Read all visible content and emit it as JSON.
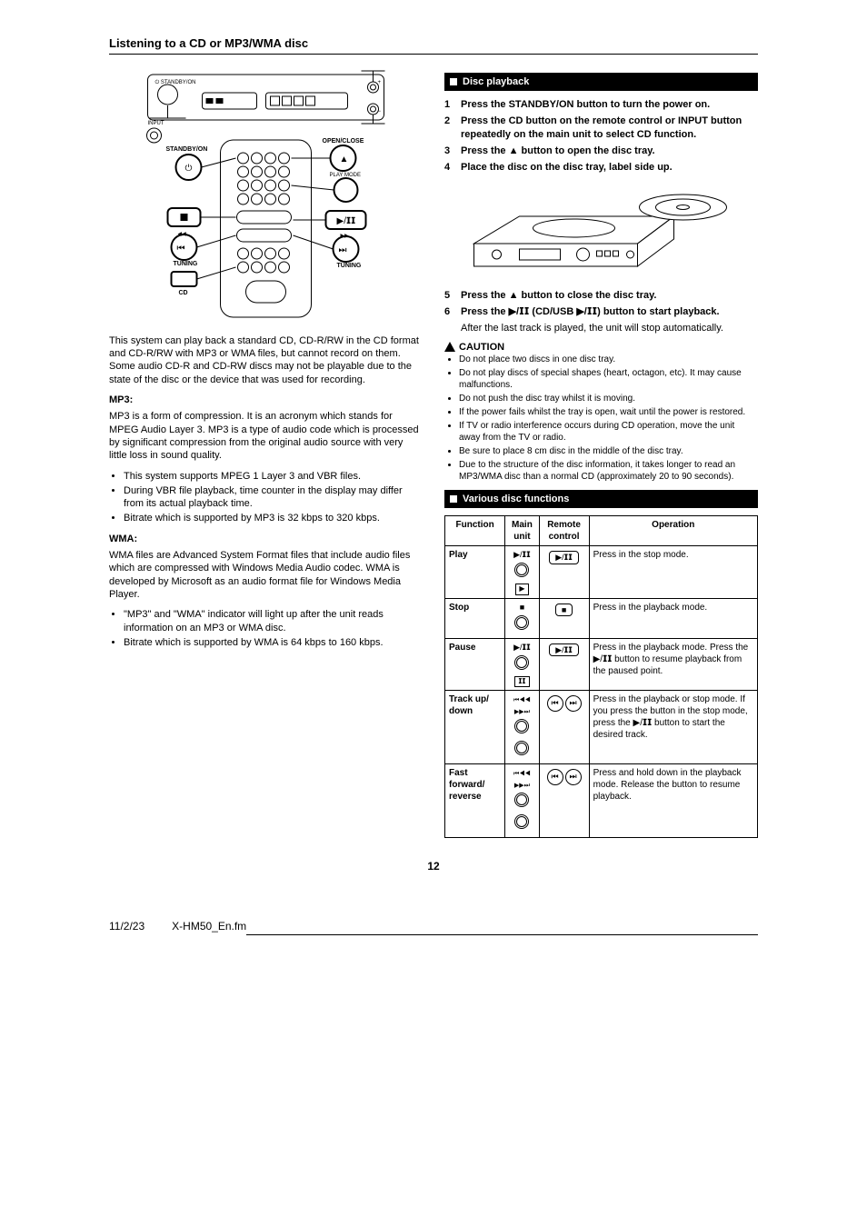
{
  "page": {
    "title": "Listening to a CD or MP3/WMA disc",
    "number": "12",
    "footer_date": "11/2/23",
    "footer_doc": "X-HM50_En.fm"
  },
  "left": {
    "diagram_labels": {
      "standby_on": "STANDBY/ON",
      "input": "INPUT",
      "open_close": "OPEN/CLOSE",
      "play_mode": "PLAY MODE",
      "tuning": "TUNING",
      "cd": "CD"
    },
    "intro": "This system can play back a standard CD, CD-R/RW in the CD format and CD-R/RW with MP3 or WMA files, but cannot record on them. Some audio CD-R and CD-RW discs may not be playable due to the state of the disc or the device that was used for recording.",
    "mp3_head": "MP3:",
    "mp3_body": "MP3 is a form of compression. It is an acronym which stands for MPEG Audio Layer 3. MP3 is a type of audio code which is processed by significant compression from the original audio source with very little loss in sound quality.",
    "mp3_bullets": [
      "This system supports MPEG 1 Layer 3 and VBR files.",
      "During VBR file playback, time counter in the display may differ from its actual playback time.",
      "Bitrate which is supported by MP3 is 32 kbps to 320 kbps."
    ],
    "wma_head": "WMA:",
    "wma_body": "WMA files are Advanced System Format files that include audio files which are compressed with Windows Media Audio codec. WMA is developed by Microsoft as an audio format file for Windows Media Player.",
    "wma_bullets": [
      "\"MP3\" and \"WMA\" indicator will light up after the unit reads information on an MP3 or WMA disc.",
      "Bitrate which is supported by WMA is 64 kbps to 160 kbps."
    ]
  },
  "right": {
    "section1_title": "Disc playback",
    "steps": [
      {
        "n": "1",
        "t": "Press the STANDBY/ON button to turn the power on."
      },
      {
        "n": "2",
        "t": "Press the CD button on the remote control or INPUT button repeatedly on the main unit to select CD function."
      },
      {
        "n": "3",
        "t": "Press the ▲ button to open the disc tray."
      },
      {
        "n": "4",
        "t": "Place the disc on the disc tray, label side up."
      }
    ],
    "step5": {
      "n": "5",
      "t": "Press the ▲ button to close the disc tray."
    },
    "step6": {
      "n": "6",
      "t": "Press the ▶/𝗜𝗜 (CD/USB ▶/𝗜𝗜) button to start playback."
    },
    "after6": "After the last track is played, the unit will stop automatically.",
    "caution_head": "CAUTION",
    "cautions": [
      "Do not place two discs in one disc tray.",
      "Do not play discs of special shapes (heart, octagon, etc). It may cause malfunctions.",
      "Do not push the disc tray whilst it is moving.",
      "If the power fails whilst the tray is open, wait until the power is restored.",
      "If TV or radio interference occurs during CD operation, move the unit away from the TV or radio.",
      "Be sure to place 8 cm disc in the middle of the disc tray.",
      "Due to the structure of the disc information, it takes longer to read an MP3/WMA disc than a normal CD (approximately 20 to 90 seconds)."
    ],
    "section2_title": "Various disc functions",
    "table": {
      "headers": [
        "Function",
        "Main unit",
        "Remote control",
        "Operation"
      ],
      "rows": [
        {
          "func": "Play",
          "main_glyph": "▶/𝗜𝗜",
          "main_sub": "▶",
          "remote": "play",
          "op": "Press in the stop mode."
        },
        {
          "func": "Stop",
          "main_glyph": "■",
          "main_sub": "",
          "remote": "stop",
          "op": "Press in the playback mode."
        },
        {
          "func": "Pause",
          "main_glyph": "▶/𝗜𝗜",
          "main_sub": "𝗜𝗜",
          "remote": "play",
          "op": "Press in the playback mode. Press the ▶/𝗜𝗜 button to resume playback from the paused point."
        },
        {
          "func": "Track up/ down",
          "main_glyph": "dbl",
          "main_sub": "",
          "remote": "skip",
          "op": "Press in the playback or stop mode. If you press the button in the stop mode, press the ▶/𝗜𝗜 button to start the desired track."
        },
        {
          "func": "Fast forward/ reverse",
          "main_glyph": "dbl",
          "main_sub": "",
          "remote": "skip",
          "op": "Press and hold down in the playback mode. Release the button to resume playback."
        }
      ]
    }
  }
}
